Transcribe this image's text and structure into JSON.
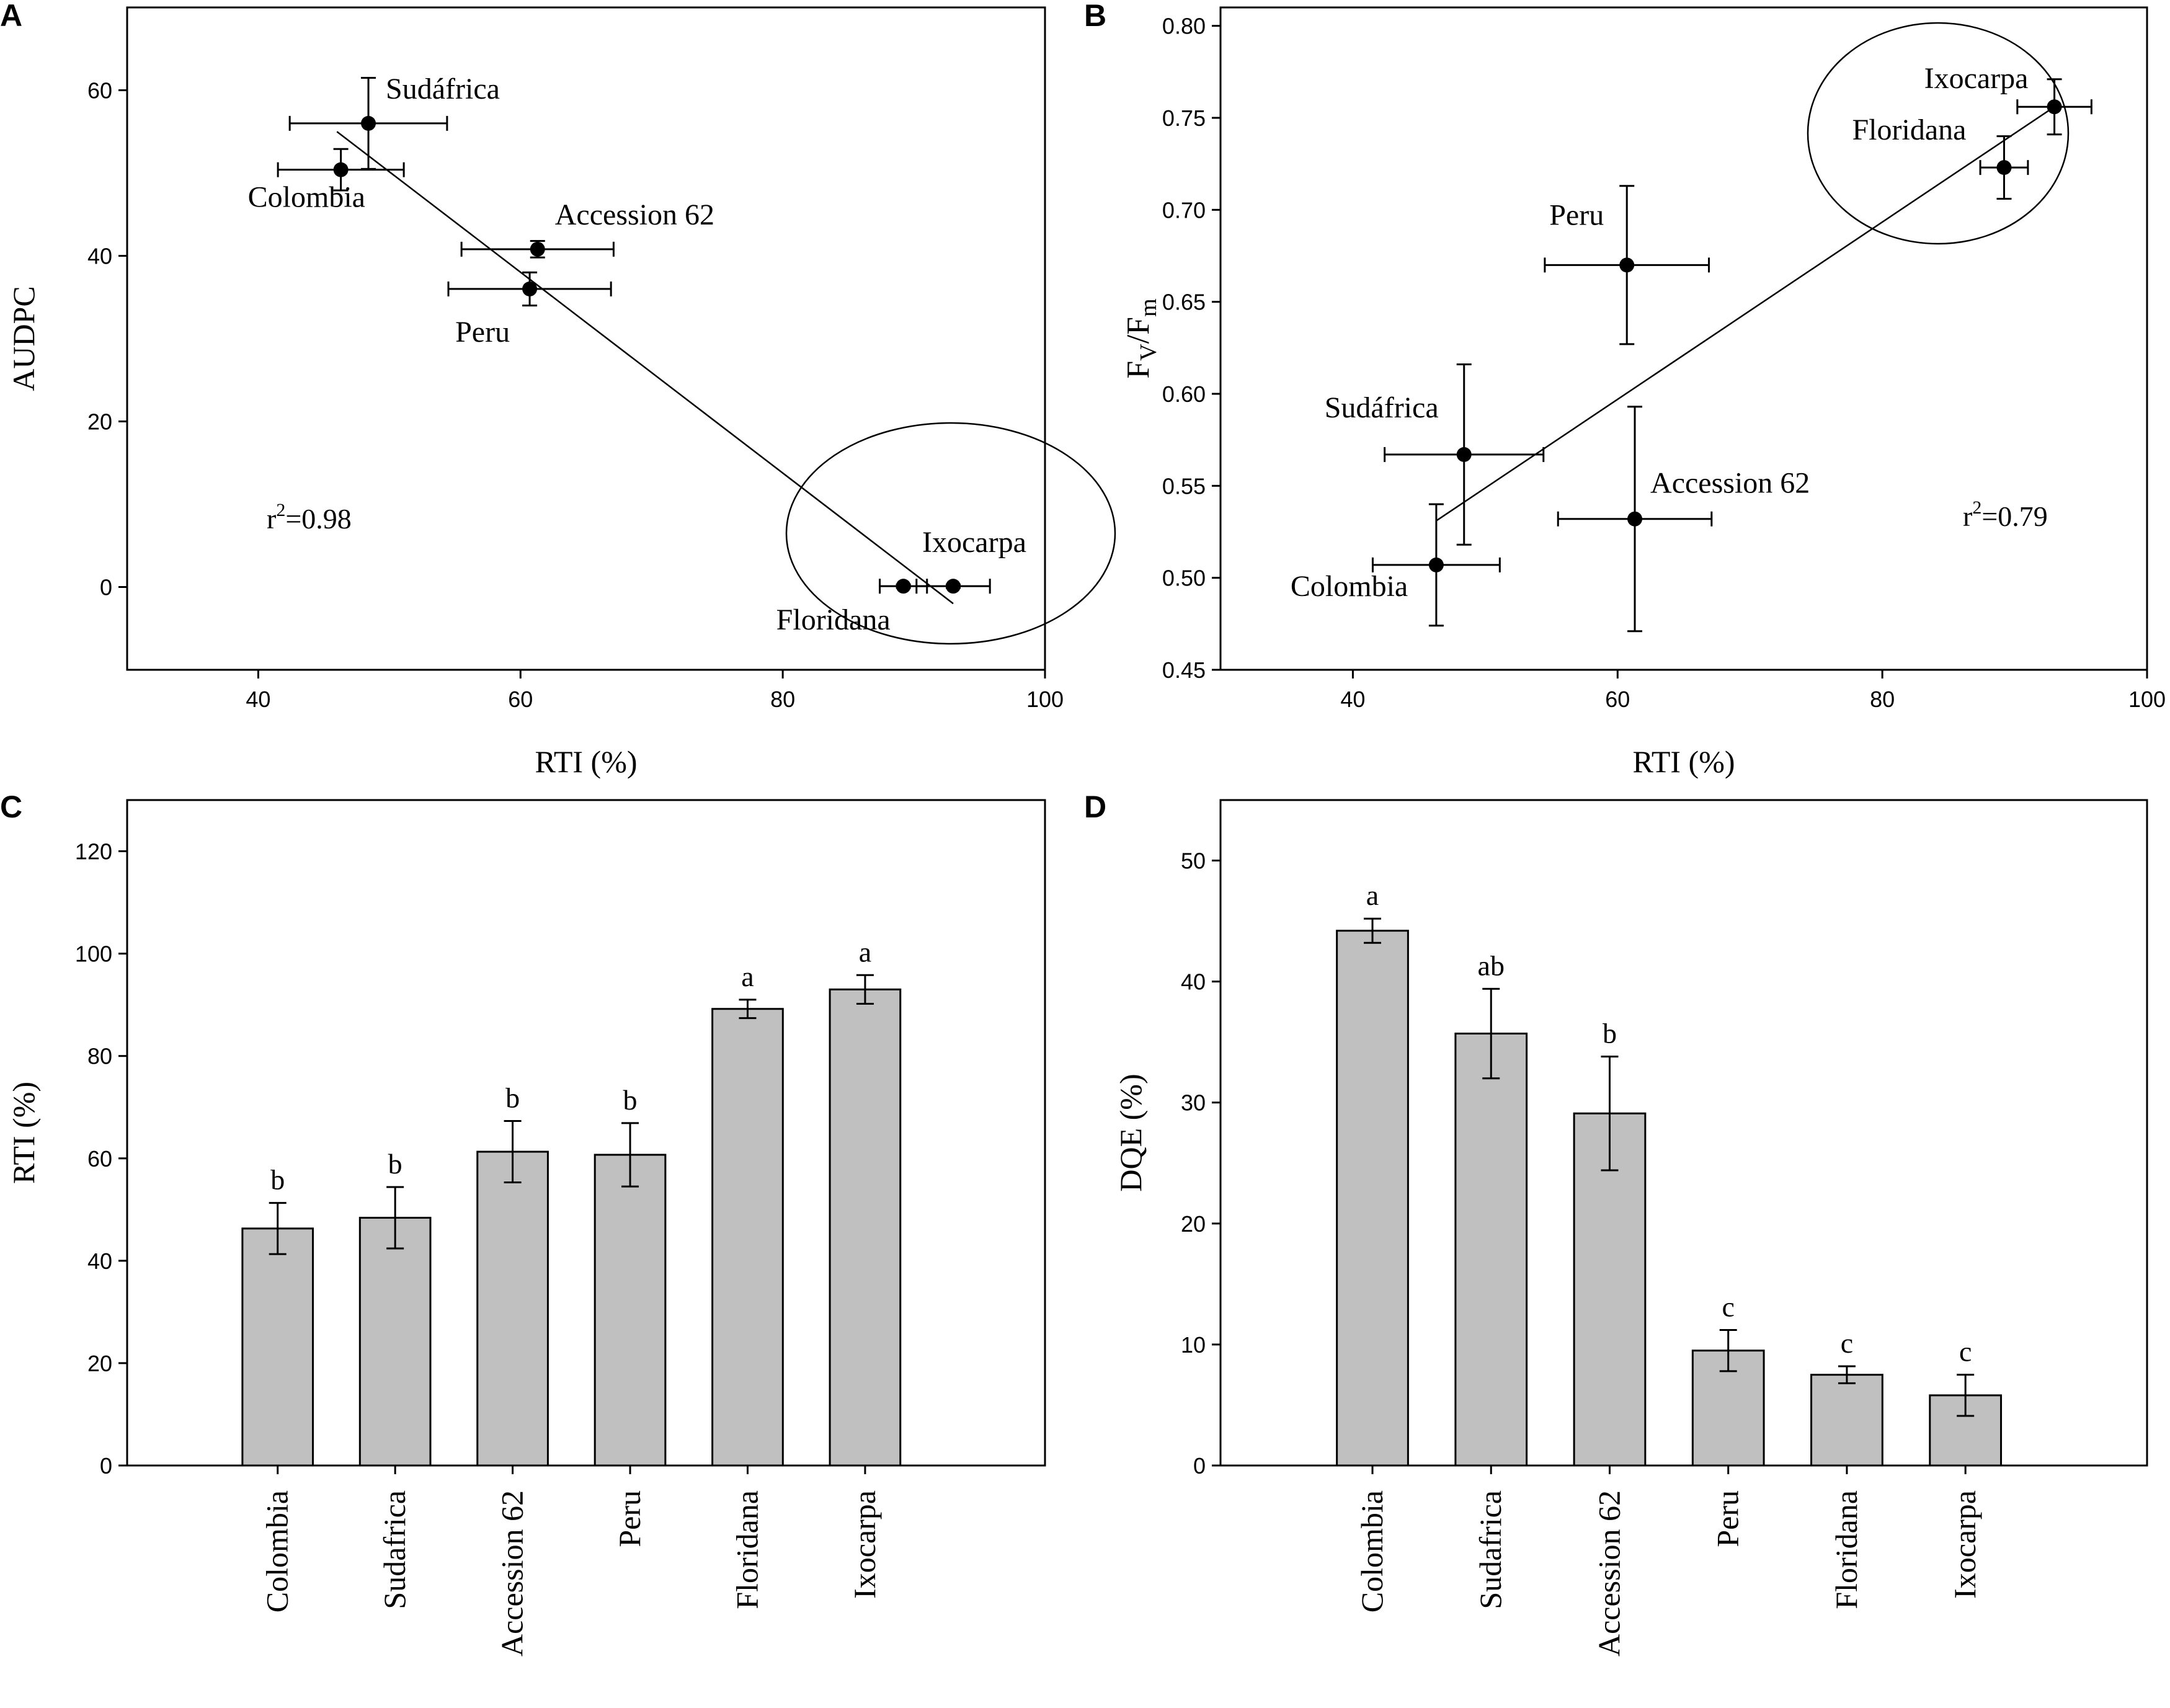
{
  "chart_data": [
    {
      "panel": "A",
      "type": "scatter",
      "xlabel": "RTI (%)",
      "ylabel": "AUDPC",
      "xlim": [
        30,
        100
      ],
      "ylim": [
        -10,
        70
      ],
      "xticks": [
        40,
        60,
        80,
        100
      ],
      "yticks": [
        0,
        20,
        40,
        60
      ],
      "annotation": {
        "prefix": "r",
        "sup": "2",
        "suffix": "=0.98"
      },
      "fit_line": {
        "x": [
          46,
          93
        ],
        "y": [
          55,
          -2
        ]
      },
      "circled": [
        "Floridana",
        "Ixocarpa"
      ],
      "points": [
        {
          "name": "Sudáfrica",
          "label": "Sudáfrica",
          "x": 48.4,
          "y": 56,
          "xerr": 6,
          "yerr": 5.5,
          "label_side": "upper-right"
        },
        {
          "name": "Colombia",
          "label": "Colombia",
          "x": 46.3,
          "y": 50.4,
          "xerr": 4.8,
          "yerr": 2.5,
          "label_side": "lower"
        },
        {
          "name": "Accession 62",
          "label": "Accession 62",
          "x": 61.3,
          "y": 40.8,
          "xerr": 5.8,
          "yerr": 1,
          "label_side": "upper-right"
        },
        {
          "name": "Peru",
          "label": "Peru",
          "x": 60.7,
          "y": 36,
          "xerr": 6.2,
          "yerr": 2,
          "label_side": "lower-left"
        },
        {
          "name": "Floridana",
          "label": "Floridana",
          "x": 89.2,
          "y": 0.1,
          "xerr": 1.8,
          "yerr": 0.2,
          "label_side": "lower-left"
        },
        {
          "name": "Ixocarpa",
          "label": "Ixocarpa",
          "x": 93,
          "y": 0.1,
          "xerr": 2.8,
          "yerr": 0.2,
          "label_side": "upper-right"
        }
      ]
    },
    {
      "panel": "B",
      "type": "scatter",
      "xlabel": "RTI (%)",
      "ylabel": {
        "base": "F",
        "sub1": "V",
        "mid": "/F",
        "sub2": "m"
      },
      "xlim": [
        30,
        100
      ],
      "ylim": [
        0.45,
        0.81
      ],
      "xticks": [
        40,
        60,
        80,
        100
      ],
      "yticks": [
        0.45,
        0.5,
        0.55,
        0.6,
        0.65,
        0.7,
        0.75,
        0.8
      ],
      "ytick_labels": [
        "0.45",
        "0.50",
        "0.55",
        "0.60",
        "0.65",
        "0.70",
        "0.75",
        "0.80"
      ],
      "annotation": {
        "prefix": "r",
        "sup": "2",
        "suffix": "=0.79"
      },
      "fit_line": {
        "x": [
          46.3,
          93
        ],
        "y": [
          0.531,
          0.756
        ]
      },
      "circled": [
        "Floridana",
        "Ixocarpa"
      ],
      "points": [
        {
          "name": "Ixocarpa",
          "label": "Ixocarpa",
          "x": 93,
          "y": 0.756,
          "xerr": 2.8,
          "yerr": 0.015,
          "label_side": "upper-left"
        },
        {
          "name": "Floridana",
          "label": "Floridana",
          "x": 89.2,
          "y": 0.723,
          "xerr": 1.8,
          "yerr": 0.017,
          "label_side": "upper-left"
        },
        {
          "name": "Peru",
          "label": "Peru",
          "x": 60.7,
          "y": 0.67,
          "xerr": 6.2,
          "yerr": 0.043,
          "label_side": "upper-left"
        },
        {
          "name": "Sudáfrica",
          "label": "Sudáfrica",
          "x": 48.4,
          "y": 0.567,
          "xerr": 6,
          "yerr": 0.049,
          "label_side": "upper-left"
        },
        {
          "name": "Accession 62",
          "label": "Accession 62",
          "x": 61.3,
          "y": 0.532,
          "xerr": 5.8,
          "yerr": 0.061,
          "label_side": "upper-right"
        },
        {
          "name": "Colombia",
          "label": "Colombia",
          "x": 46.3,
          "y": 0.507,
          "xerr": 4.8,
          "yerr": 0.033,
          "label_side": "lower-left"
        }
      ]
    },
    {
      "panel": "C",
      "type": "bar",
      "xlabel": "",
      "ylabel": "RTI (%)",
      "ylim": [
        0,
        130
      ],
      "yticks": [
        0,
        20,
        40,
        60,
        80,
        100,
        120
      ],
      "categories": [
        "Colombia",
        "Sudafrica",
        "Accession 62",
        "Peru",
        "Floridana",
        "Ixocarpa"
      ],
      "values": [
        46.3,
        48.4,
        61.3,
        60.7,
        89.2,
        93
      ],
      "errors": [
        5,
        6,
        6,
        6.2,
        1.8,
        2.8
      ],
      "letters": [
        "b",
        "b",
        "b",
        "b",
        "a",
        "a"
      ]
    },
    {
      "panel": "D",
      "type": "bar",
      "xlabel": "",
      "ylabel": "DQE (%)",
      "ylim": [
        0,
        55
      ],
      "yticks": [
        0,
        10,
        20,
        30,
        40,
        50
      ],
      "categories": [
        "Colombia",
        "Sudafrica",
        "Accession 62",
        "Peru",
        "Floridana",
        "Ixocarpa"
      ],
      "values": [
        44.2,
        35.7,
        29.1,
        9.5,
        7.5,
        5.8
      ],
      "errors": [
        1,
        3.7,
        4.7,
        1.7,
        0.7,
        1.7
      ],
      "letters": [
        "a",
        "ab",
        "b",
        "c",
        "c",
        "c"
      ]
    }
  ]
}
